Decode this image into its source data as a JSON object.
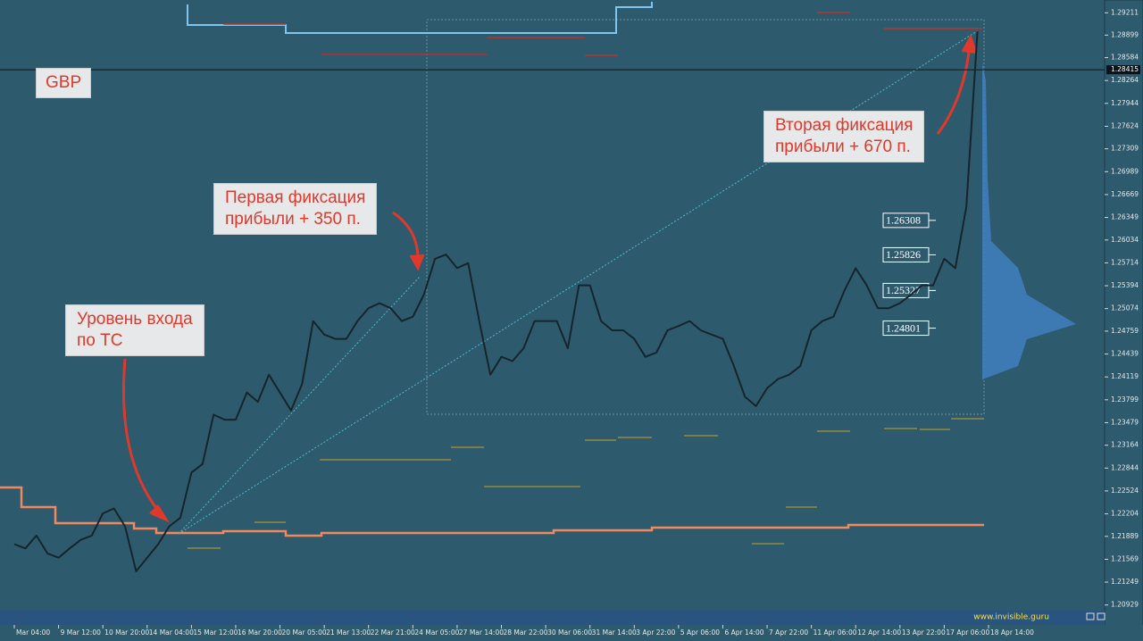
{
  "chart_data": {
    "type": "line",
    "symbol": "GBP",
    "categories": [
      "Mar 04:00",
      null,
      null,
      null,
      "9 Mar 12:00",
      null,
      null,
      null,
      "10 Mar 20:00",
      null,
      null,
      null,
      "14 Mar 04:00",
      null,
      null,
      null,
      "15 Mar 12:00",
      null,
      null,
      null,
      "16 Mar 20:00",
      null,
      null,
      null,
      "20 Mar 05:00",
      null,
      null,
      null,
      "21 Mar 13:00",
      null,
      null,
      null,
      "22 Mar 21:00",
      null,
      null,
      null,
      "24 Mar 05:00",
      null,
      null,
      null,
      "27 Mar 14:00",
      null,
      null,
      null,
      "28 Mar 22:00",
      null,
      null,
      null,
      "30 Mar 06:00",
      null,
      null,
      null,
      "31 Mar 14:00",
      null,
      null,
      null,
      "3 Apr 22:00",
      null,
      null,
      null,
      "5 Apr 06:00",
      null,
      null,
      null,
      "6 Apr 14:00",
      null,
      null,
      null,
      "7 Apr 22:00",
      null,
      null,
      null,
      "11 Apr 06:00",
      null,
      null,
      null,
      "12 Apr 14:00",
      null,
      null,
      null,
      "13 Apr 22:00",
      null,
      null,
      null,
      "17 Apr 06:00",
      null,
      null,
      null,
      "18 Apr 14:00"
    ],
    "series": [
      {
        "name": "GBPUSD",
        "color": "#16252c",
        "values": [
          1.2178,
          1.2172,
          1.219,
          1.2165,
          1.2159,
          1.2172,
          1.2184,
          1.219,
          1.2221,
          1.2228,
          1.2203,
          1.214,
          1.2159,
          1.2178,
          1.2203,
          1.2215,
          1.2278,
          1.229,
          1.2359,
          1.2352,
          1.2352,
          1.239,
          1.2377,
          1.2415,
          1.239,
          1.2365,
          1.2402,
          1.249,
          1.2471,
          1.2465,
          1.2465,
          1.249,
          1.2508,
          1.2515,
          1.2508,
          1.249,
          1.2496,
          1.2527,
          1.2577,
          1.2583,
          1.2564,
          1.2571,
          1.249,
          1.2415,
          1.244,
          1.2434,
          1.2452,
          1.249,
          1.249,
          1.249,
          1.2452,
          1.254,
          1.254,
          1.249,
          1.2477,
          1.2477,
          1.2465,
          1.244,
          1.2446,
          1.2477,
          1.2483,
          1.249,
          1.2477,
          1.2471,
          1.2465,
          1.2427,
          1.2384,
          1.2371,
          1.2396,
          1.2409,
          1.2415,
          1.2427,
          1.2477,
          1.249,
          1.2496,
          1.2533,
          1.2564,
          1.254,
          1.2508,
          1.2508,
          1.2515,
          1.2527,
          1.254,
          1.254,
          1.2577,
          1.2564,
          1.265,
          1.2895,
          null
        ]
      }
    ],
    "ylim": [
      1.2085,
      1.2939
    ],
    "yticks": [
      1.29211,
      1.28899,
      1.28584,
      1.28264,
      1.27944,
      1.27624,
      1.27309,
      1.26989,
      1.26669,
      1.26349,
      1.26034,
      1.25714,
      1.25394,
      1.25074,
      1.24759,
      1.24439,
      1.24119,
      1.23799,
      1.23479,
      1.23164,
      1.22844,
      1.22524,
      1.22204,
      1.21889,
      1.21569,
      1.21249,
      1.20929
    ],
    "current_price": 1.28415,
    "levels": [
      1.26308,
      1.25826,
      1.25327,
      1.24801
    ],
    "annotations": [
      "Уровень входа\nпо ТС",
      "Первая фиксация\nприбыли + 350 п.",
      "Вторая фиксация\nприбыли + 670 п."
    ],
    "footer": "www.invisible.guru"
  }
}
